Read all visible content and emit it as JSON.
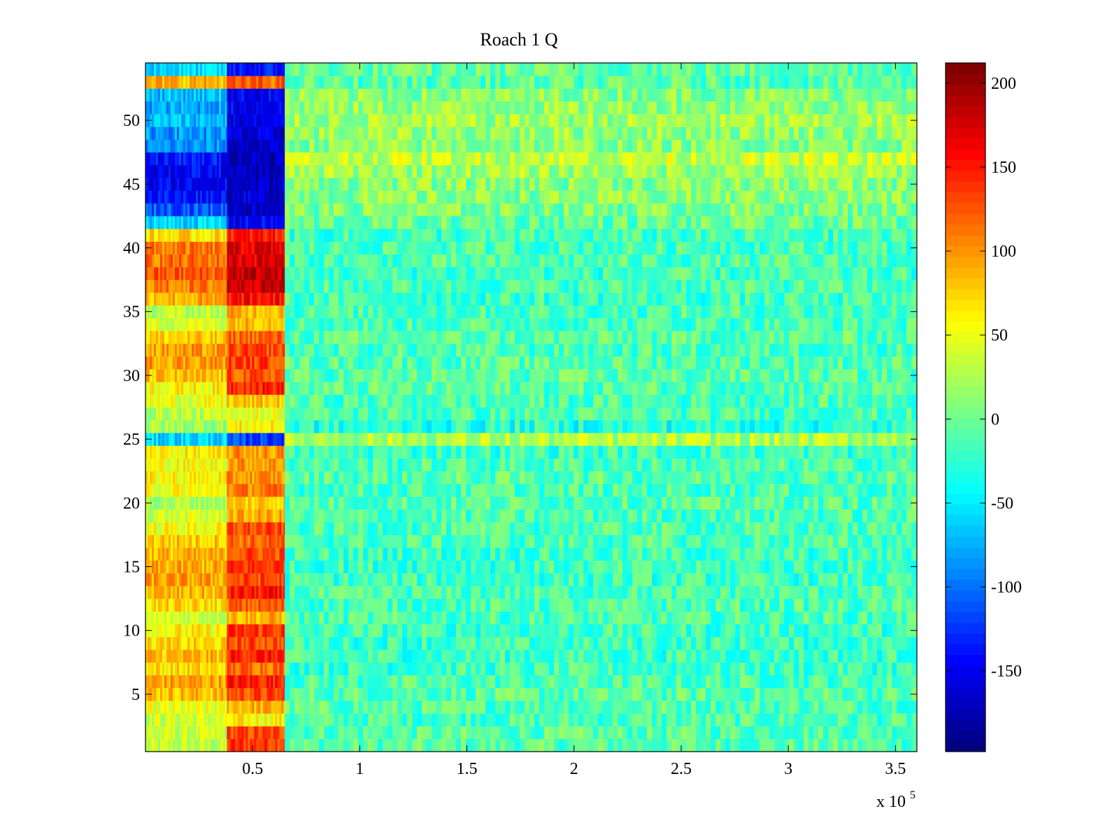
{
  "chart_data": {
    "type": "heatmap",
    "title": "Roach 1 Q",
    "xlabel": "",
    "ylabel": "",
    "x_exponent_label": "x 10",
    "x_exponent": "5",
    "xlim": [
      0,
      3.6
    ],
    "ylim": [
      0.5,
      54.5
    ],
    "x_ticks": [
      0.5,
      1,
      1.5,
      2,
      2.5,
      3,
      3.5
    ],
    "x_tick_labels": [
      "0.5",
      "1",
      "1.5",
      "2",
      "2.5",
      "3",
      "3.5"
    ],
    "y_ticks": [
      5,
      10,
      15,
      20,
      25,
      30,
      35,
      40,
      45,
      50
    ],
    "y_tick_labels": [
      "5",
      "10",
      "15",
      "20",
      "25",
      "30",
      "35",
      "40",
      "45",
      "50"
    ],
    "n_rows": 54,
    "colormap": "jet",
    "clim": [
      -198,
      212
    ],
    "colorbar": {
      "ticks": [
        200,
        150,
        100,
        50,
        0,
        -50,
        -100,
        -150
      ],
      "tick_labels": [
        "200",
        "150",
        "100",
        "50",
        "0",
        "-50",
        "-100",
        "-150"
      ]
    },
    "regions": [
      {
        "x_start": 0,
        "x_end": 0.38,
        "description": "early segment"
      },
      {
        "x_start": 0.38,
        "x_end": 0.65,
        "description": "strong segment"
      },
      {
        "x_start": 0.65,
        "x_end": 3.6,
        "description": "background"
      }
    ],
    "row_levels": {
      "54": [
        -60,
        -140,
        -5
      ],
      "53": [
        90,
        120,
        -10
      ],
      "52": [
        -70,
        -150,
        10
      ],
      "51": [
        -80,
        -150,
        15
      ],
      "50": [
        -70,
        -160,
        20
      ],
      "49": [
        -85,
        -165,
        15
      ],
      "48": [
        -90,
        -170,
        10
      ],
      "47": [
        -140,
        -170,
        35
      ],
      "46": [
        -150,
        -175,
        20
      ],
      "45": [
        -150,
        -170,
        10
      ],
      "44": [
        -140,
        -165,
        10
      ],
      "43": [
        -110,
        -165,
        5
      ],
      "42": [
        -60,
        -150,
        -5
      ],
      "41": [
        70,
        150,
        -20
      ],
      "40": [
        110,
        170,
        -15
      ],
      "39": [
        115,
        175,
        -15
      ],
      "38": [
        125,
        185,
        -20
      ],
      "37": [
        110,
        185,
        -15
      ],
      "36": [
        90,
        155,
        -20
      ],
      "35": [
        30,
        90,
        -15
      ],
      "34": [
        45,
        90,
        -15
      ],
      "33": [
        75,
        120,
        -10
      ],
      "32": [
        95,
        130,
        -15
      ],
      "31": [
        100,
        135,
        -10
      ],
      "30": [
        80,
        125,
        -10
      ],
      "29": [
        60,
        150,
        -10
      ],
      "28": [
        50,
        80,
        -15
      ],
      "27": [
        30,
        50,
        -15
      ],
      "26": [
        20,
        60,
        -30
      ],
      "25": [
        -60,
        -120,
        25
      ],
      "24": [
        60,
        100,
        -20
      ],
      "23": [
        55,
        100,
        -15
      ],
      "22": [
        60,
        100,
        -10
      ],
      "21": [
        55,
        110,
        -15
      ],
      "20": [
        25,
        80,
        -10
      ],
      "19": [
        40,
        90,
        -15
      ],
      "18": [
        55,
        130,
        -15
      ],
      "17": [
        80,
        120,
        -15
      ],
      "16": [
        85,
        130,
        -20
      ],
      "15": [
        90,
        140,
        -20
      ],
      "14": [
        95,
        130,
        -20
      ],
      "13": [
        85,
        150,
        -15
      ],
      "12": [
        70,
        120,
        -15
      ],
      "11": [
        40,
        90,
        -15
      ],
      "10": [
        60,
        140,
        -20
      ],
      "9": [
        70,
        130,
        -20
      ],
      "8": [
        85,
        150,
        -20
      ],
      "7": [
        70,
        120,
        -20
      ],
      "6": [
        95,
        150,
        -15
      ],
      "5": [
        85,
        130,
        -10
      ],
      "4": [
        45,
        90,
        -10
      ],
      "3": [
        40,
        60,
        -15
      ],
      "2": [
        35,
        130,
        -10
      ],
      "1": [
        30,
        140,
        -10
      ]
    }
  }
}
